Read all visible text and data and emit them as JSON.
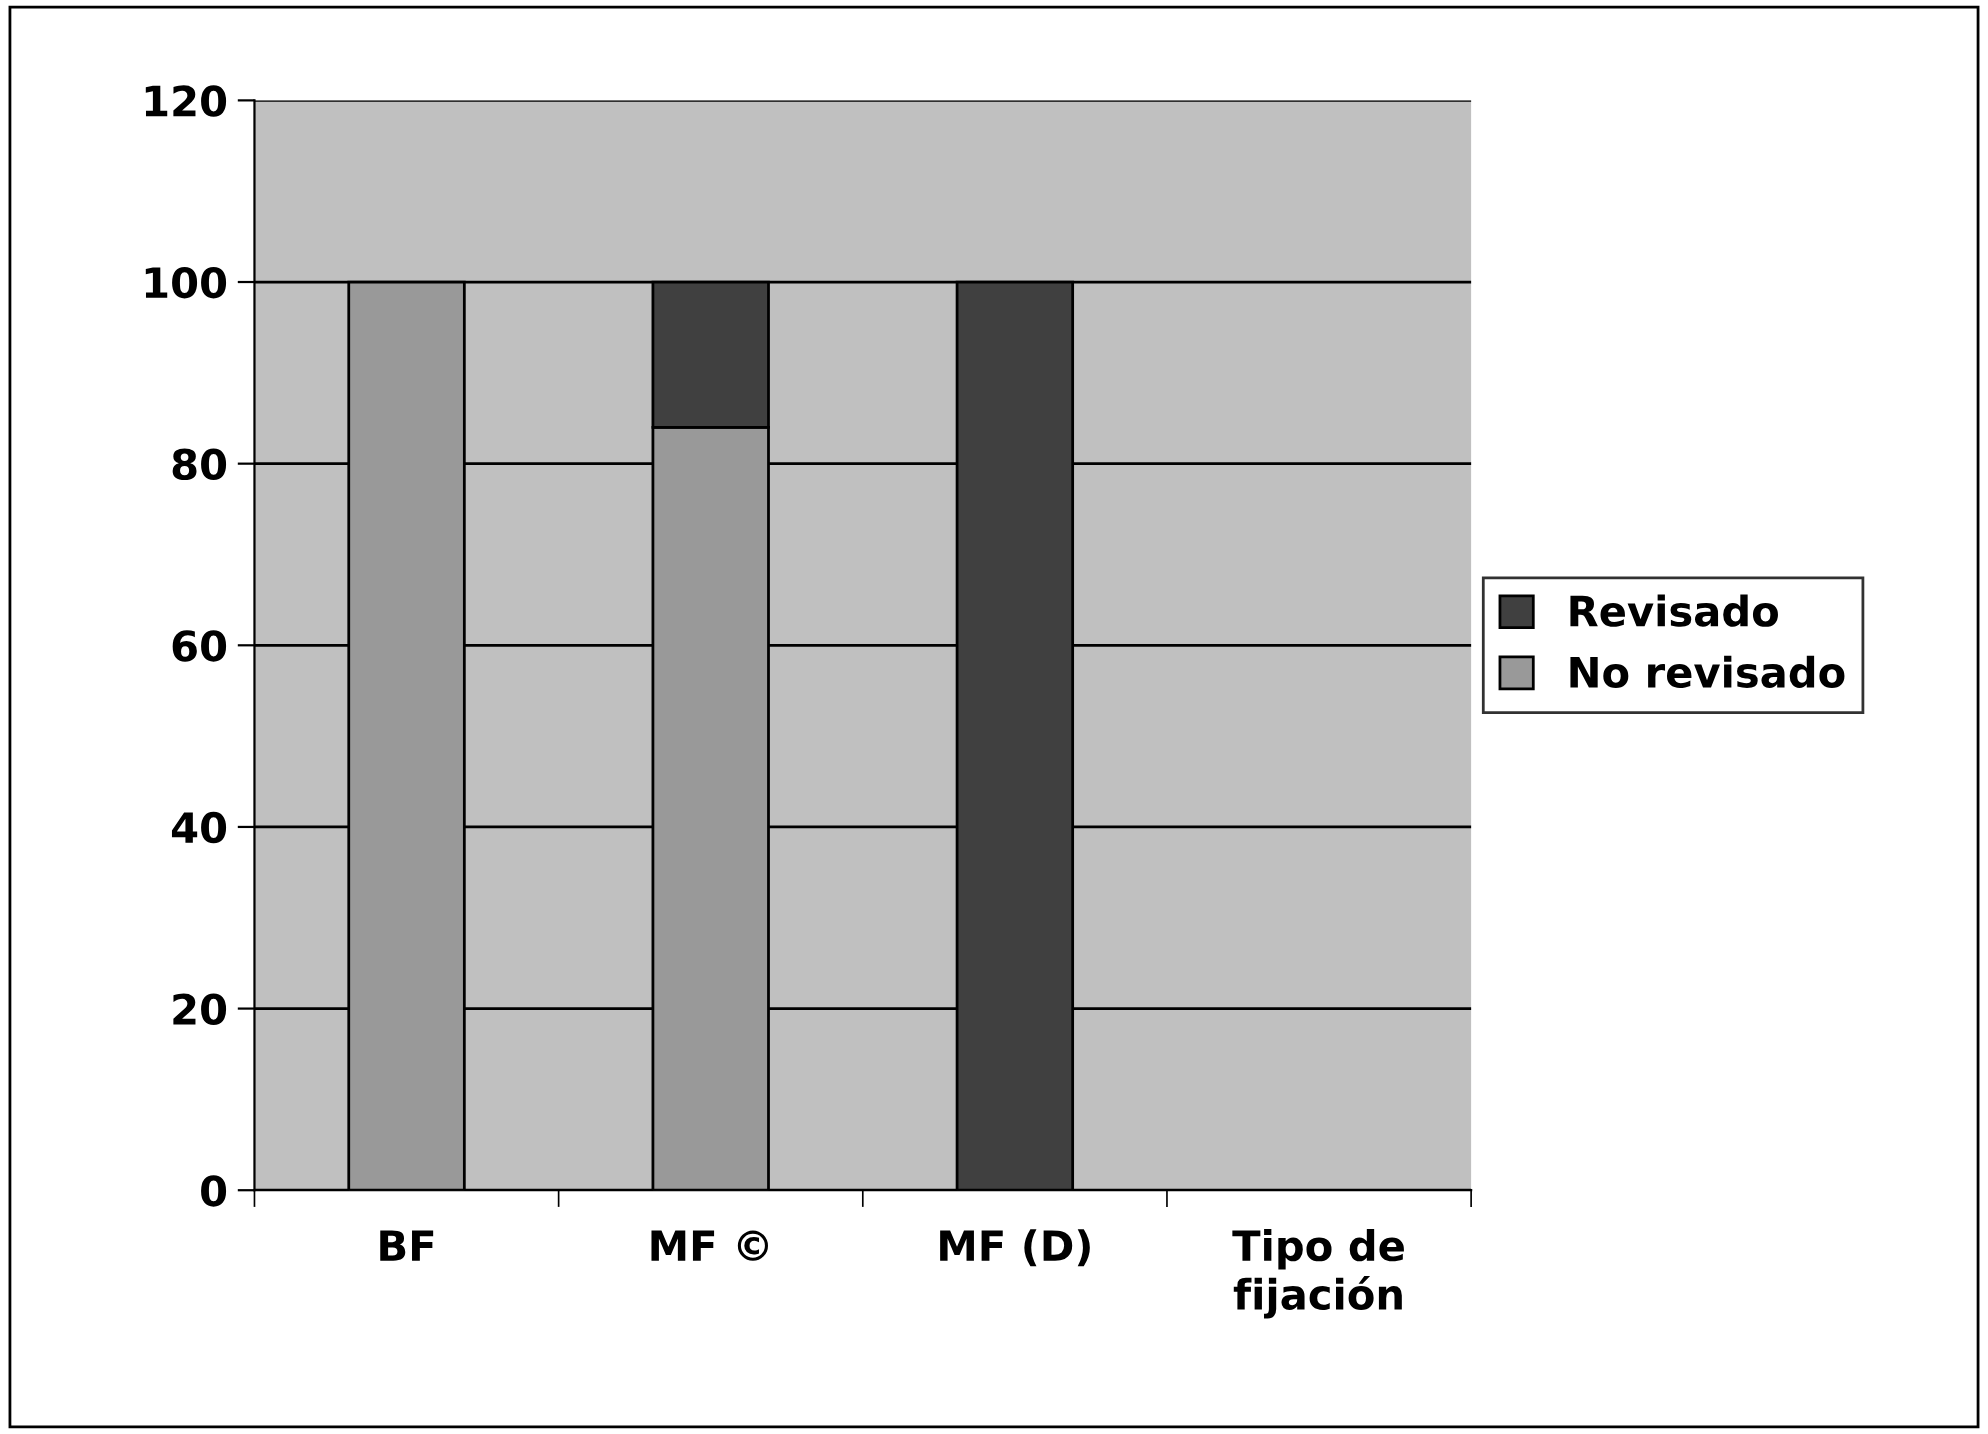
{
  "chart_data": {
    "type": "bar",
    "stacked": true,
    "categories": [
      "BF",
      "MF ©",
      "MF (D)",
      "Tipo de\nfijación"
    ],
    "series": [
      {
        "name": "No revisado",
        "color": "#999999",
        "values": [
          100,
          84,
          null,
          null
        ]
      },
      {
        "name": "Revisado",
        "color": "#404040",
        "values": [
          null,
          16,
          100,
          null
        ]
      }
    ],
    "ylim": [
      0,
      120
    ],
    "yticks": [
      0,
      20,
      40,
      60,
      80,
      100,
      120
    ],
    "grid": "y",
    "legend": "right"
  }
}
